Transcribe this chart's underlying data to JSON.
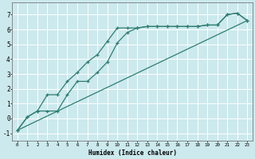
{
  "xlabel": "Humidex (Indice chaleur)",
  "bg_color": "#cce9ed",
  "grid_color": "#ffffff",
  "line_color": "#2e7d72",
  "xlim": [
    -0.5,
    23.5
  ],
  "ylim": [
    -1.5,
    7.8
  ],
  "xticks": [
    0,
    1,
    2,
    3,
    4,
    5,
    6,
    7,
    8,
    9,
    10,
    11,
    12,
    13,
    14,
    15,
    16,
    17,
    18,
    19,
    20,
    21,
    22,
    23
  ],
  "yticks": [
    -1,
    0,
    1,
    2,
    3,
    4,
    5,
    6,
    7
  ],
  "series1_x": [
    0,
    1,
    2,
    3,
    4,
    5,
    6,
    7,
    8,
    9,
    10,
    11,
    12,
    13,
    14,
    15,
    16,
    17,
    18,
    19,
    20,
    21,
    22,
    23
  ],
  "series1_y": [
    -0.8,
    0.1,
    0.5,
    1.6,
    1.6,
    2.5,
    3.1,
    3.8,
    4.3,
    5.2,
    6.1,
    6.1,
    6.1,
    6.2,
    6.2,
    6.2,
    6.2,
    6.2,
    6.2,
    6.3,
    6.3,
    7.0,
    7.1,
    6.6
  ],
  "series2_x": [
    0,
    1,
    2,
    3,
    4,
    5,
    6,
    7,
    8,
    9,
    10,
    11,
    12,
    13,
    14,
    15,
    16,
    17,
    18,
    19,
    20,
    21,
    22,
    23
  ],
  "series2_y": [
    -0.8,
    0.1,
    0.5,
    0.5,
    0.5,
    1.6,
    2.5,
    2.5,
    3.1,
    3.8,
    5.1,
    5.8,
    6.1,
    6.2,
    6.2,
    6.2,
    6.2,
    6.2,
    6.2,
    6.3,
    6.3,
    7.0,
    7.1,
    6.6
  ],
  "series3_x": [
    0,
    23
  ],
  "series3_y": [
    -0.8,
    6.6
  ]
}
